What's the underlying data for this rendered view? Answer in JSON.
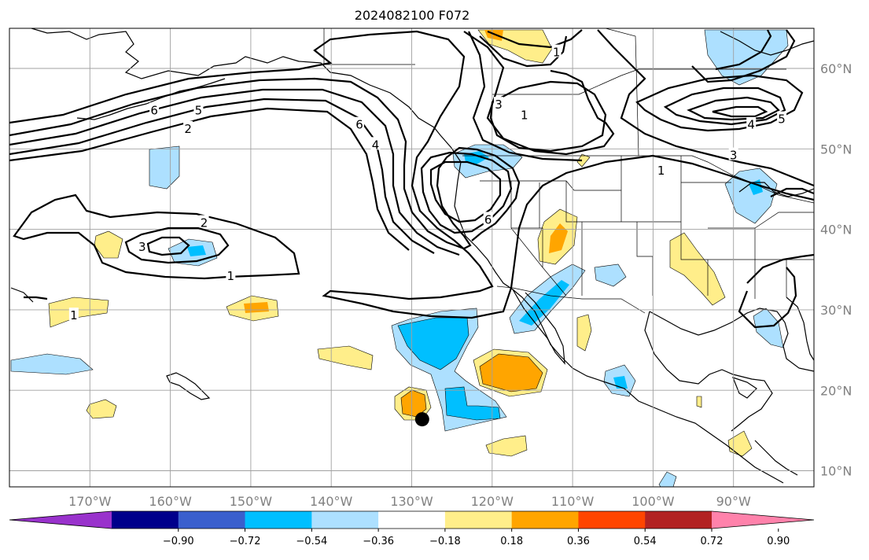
{
  "title": "2024082100 F072",
  "map": {
    "lon_range": [
      -180,
      -80
    ],
    "lat_range": [
      8,
      65
    ],
    "lat_ticks": [
      {
        "value": 10,
        "label": "10°N"
      },
      {
        "value": 20,
        "label": "20°N"
      },
      {
        "value": 30,
        "label": "30°N"
      },
      {
        "value": 40,
        "label": "40°N"
      },
      {
        "value": 50,
        "label": "50°N"
      },
      {
        "value": 60,
        "label": "60°N"
      }
    ],
    "lon_ticks": [
      {
        "value": -170,
        "label": "170°W"
      },
      {
        "value": -160,
        "label": "160°W"
      },
      {
        "value": -150,
        "label": "150°W"
      },
      {
        "value": -140,
        "label": "140°W"
      },
      {
        "value": -130,
        "label": "130°W"
      },
      {
        "value": -120,
        "label": "120°W"
      },
      {
        "value": -110,
        "label": "110°W"
      },
      {
        "value": -100,
        "label": "100°W"
      },
      {
        "value": -90,
        "label": "90°W"
      }
    ],
    "grid": true,
    "marker": {
      "lon": -128.7,
      "lat": 16.4,
      "color": "#000000"
    },
    "contour_labels": [
      {
        "text": "6",
        "lon": -162,
        "lat": 54.8
      },
      {
        "text": "5",
        "lon": -156.5,
        "lat": 54.8
      },
      {
        "text": "2",
        "lon": -157.8,
        "lat": 52.5
      },
      {
        "text": "6",
        "lon": -136.5,
        "lat": 53.0
      },
      {
        "text": "4",
        "lon": -134.5,
        "lat": 50.5
      },
      {
        "text": "2",
        "lon": -155.8,
        "lat": 40.8
      },
      {
        "text": "3",
        "lon": -163.5,
        "lat": 37.8
      },
      {
        "text": "1",
        "lon": -152.5,
        "lat": 34.2
      },
      {
        "text": "3",
        "lon": -119.2,
        "lat": 55.5
      },
      {
        "text": "1",
        "lon": -116.0,
        "lat": 54.2
      },
      {
        "text": "1",
        "lon": -112.0,
        "lat": 62.0
      },
      {
        "text": "6",
        "lon": -120.5,
        "lat": 41.2
      },
      {
        "text": "5",
        "lon": -84.0,
        "lat": 53.7
      },
      {
        "text": "4",
        "lon": -87.8,
        "lat": 53.0
      },
      {
        "text": "3",
        "lon": -90.0,
        "lat": 49.2
      },
      {
        "text": "1",
        "lon": -99.0,
        "lat": 47.3
      },
      {
        "text": "1",
        "lon": -172.0,
        "lat": 29.3
      }
    ],
    "fill_colors": {
      "pos1": "#ffee8a",
      "pos2": "#ffa500",
      "neg1": "#ade0ff",
      "neg2": "#00bfff"
    }
  },
  "colorbar": {
    "tick_labels": [
      "−0.90",
      "−0.72",
      "−0.54",
      "−0.36",
      "−0.18",
      "0.18",
      "0.36",
      "0.54",
      "0.72",
      "0.90"
    ],
    "segments": [
      {
        "color": "#9932cc"
      },
      {
        "color": "#00008b"
      },
      {
        "color": "#3a5fcd"
      },
      {
        "color": "#00bfff"
      },
      {
        "color": "#ade0ff"
      },
      {
        "color": "#ffffff"
      },
      {
        "color": "#ffee8a"
      },
      {
        "color": "#ffa500"
      },
      {
        "color": "#ff4500"
      },
      {
        "color": "#b22222"
      },
      {
        "color": "#ff82ab"
      }
    ]
  }
}
